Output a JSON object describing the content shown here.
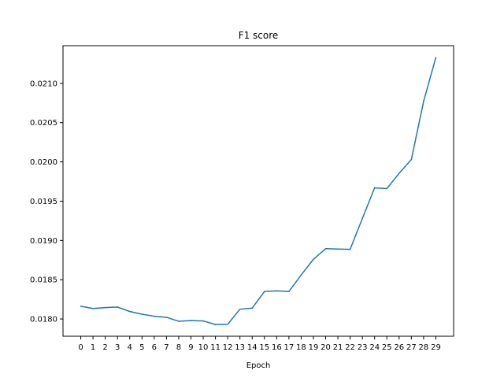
{
  "chart_data": {
    "type": "line",
    "title": "F1 score",
    "xlabel": "Epoch",
    "ylabel": "",
    "x": [
      0,
      1,
      2,
      3,
      4,
      5,
      6,
      7,
      8,
      9,
      10,
      11,
      12,
      13,
      14,
      15,
      16,
      17,
      18,
      19,
      20,
      21,
      22,
      23,
      24,
      25,
      26,
      27,
      28,
      29
    ],
    "x_ticks": [
      "0",
      "1",
      "2",
      "3",
      "4",
      "5",
      "6",
      "7",
      "8",
      "9",
      "10",
      "11",
      "12",
      "13",
      "14",
      "15",
      "16",
      "17",
      "18",
      "19",
      "20",
      "21",
      "22",
      "23",
      "24",
      "25",
      "26",
      "27",
      "28",
      "29"
    ],
    "y_ticks": [
      "0.0180",
      "0.0185",
      "0.0190",
      "0.0195",
      "0.0200",
      "0.0205",
      "0.0210"
    ],
    "y_tick_values": [
      0.018,
      0.0185,
      0.019,
      0.0195,
      0.02,
      0.0205,
      0.021
    ],
    "xlim": [
      -1.45,
      30.45
    ],
    "ylim": [
      0.01778,
      0.02148
    ],
    "grid": false,
    "series": [
      {
        "color": "#1f77b4",
        "values": [
          0.018162,
          0.018134,
          0.018145,
          0.018152,
          0.018096,
          0.018061,
          0.018035,
          0.018021,
          0.017971,
          0.01798,
          0.017975,
          0.017929,
          0.017933,
          0.018124,
          0.018138,
          0.01835,
          0.018358,
          0.01835,
          0.01856,
          0.01876,
          0.018895,
          0.01889,
          0.018887,
          0.01928,
          0.01967,
          0.01966,
          0.019855,
          0.02003,
          0.02077,
          0.02133
        ]
      }
    ]
  }
}
